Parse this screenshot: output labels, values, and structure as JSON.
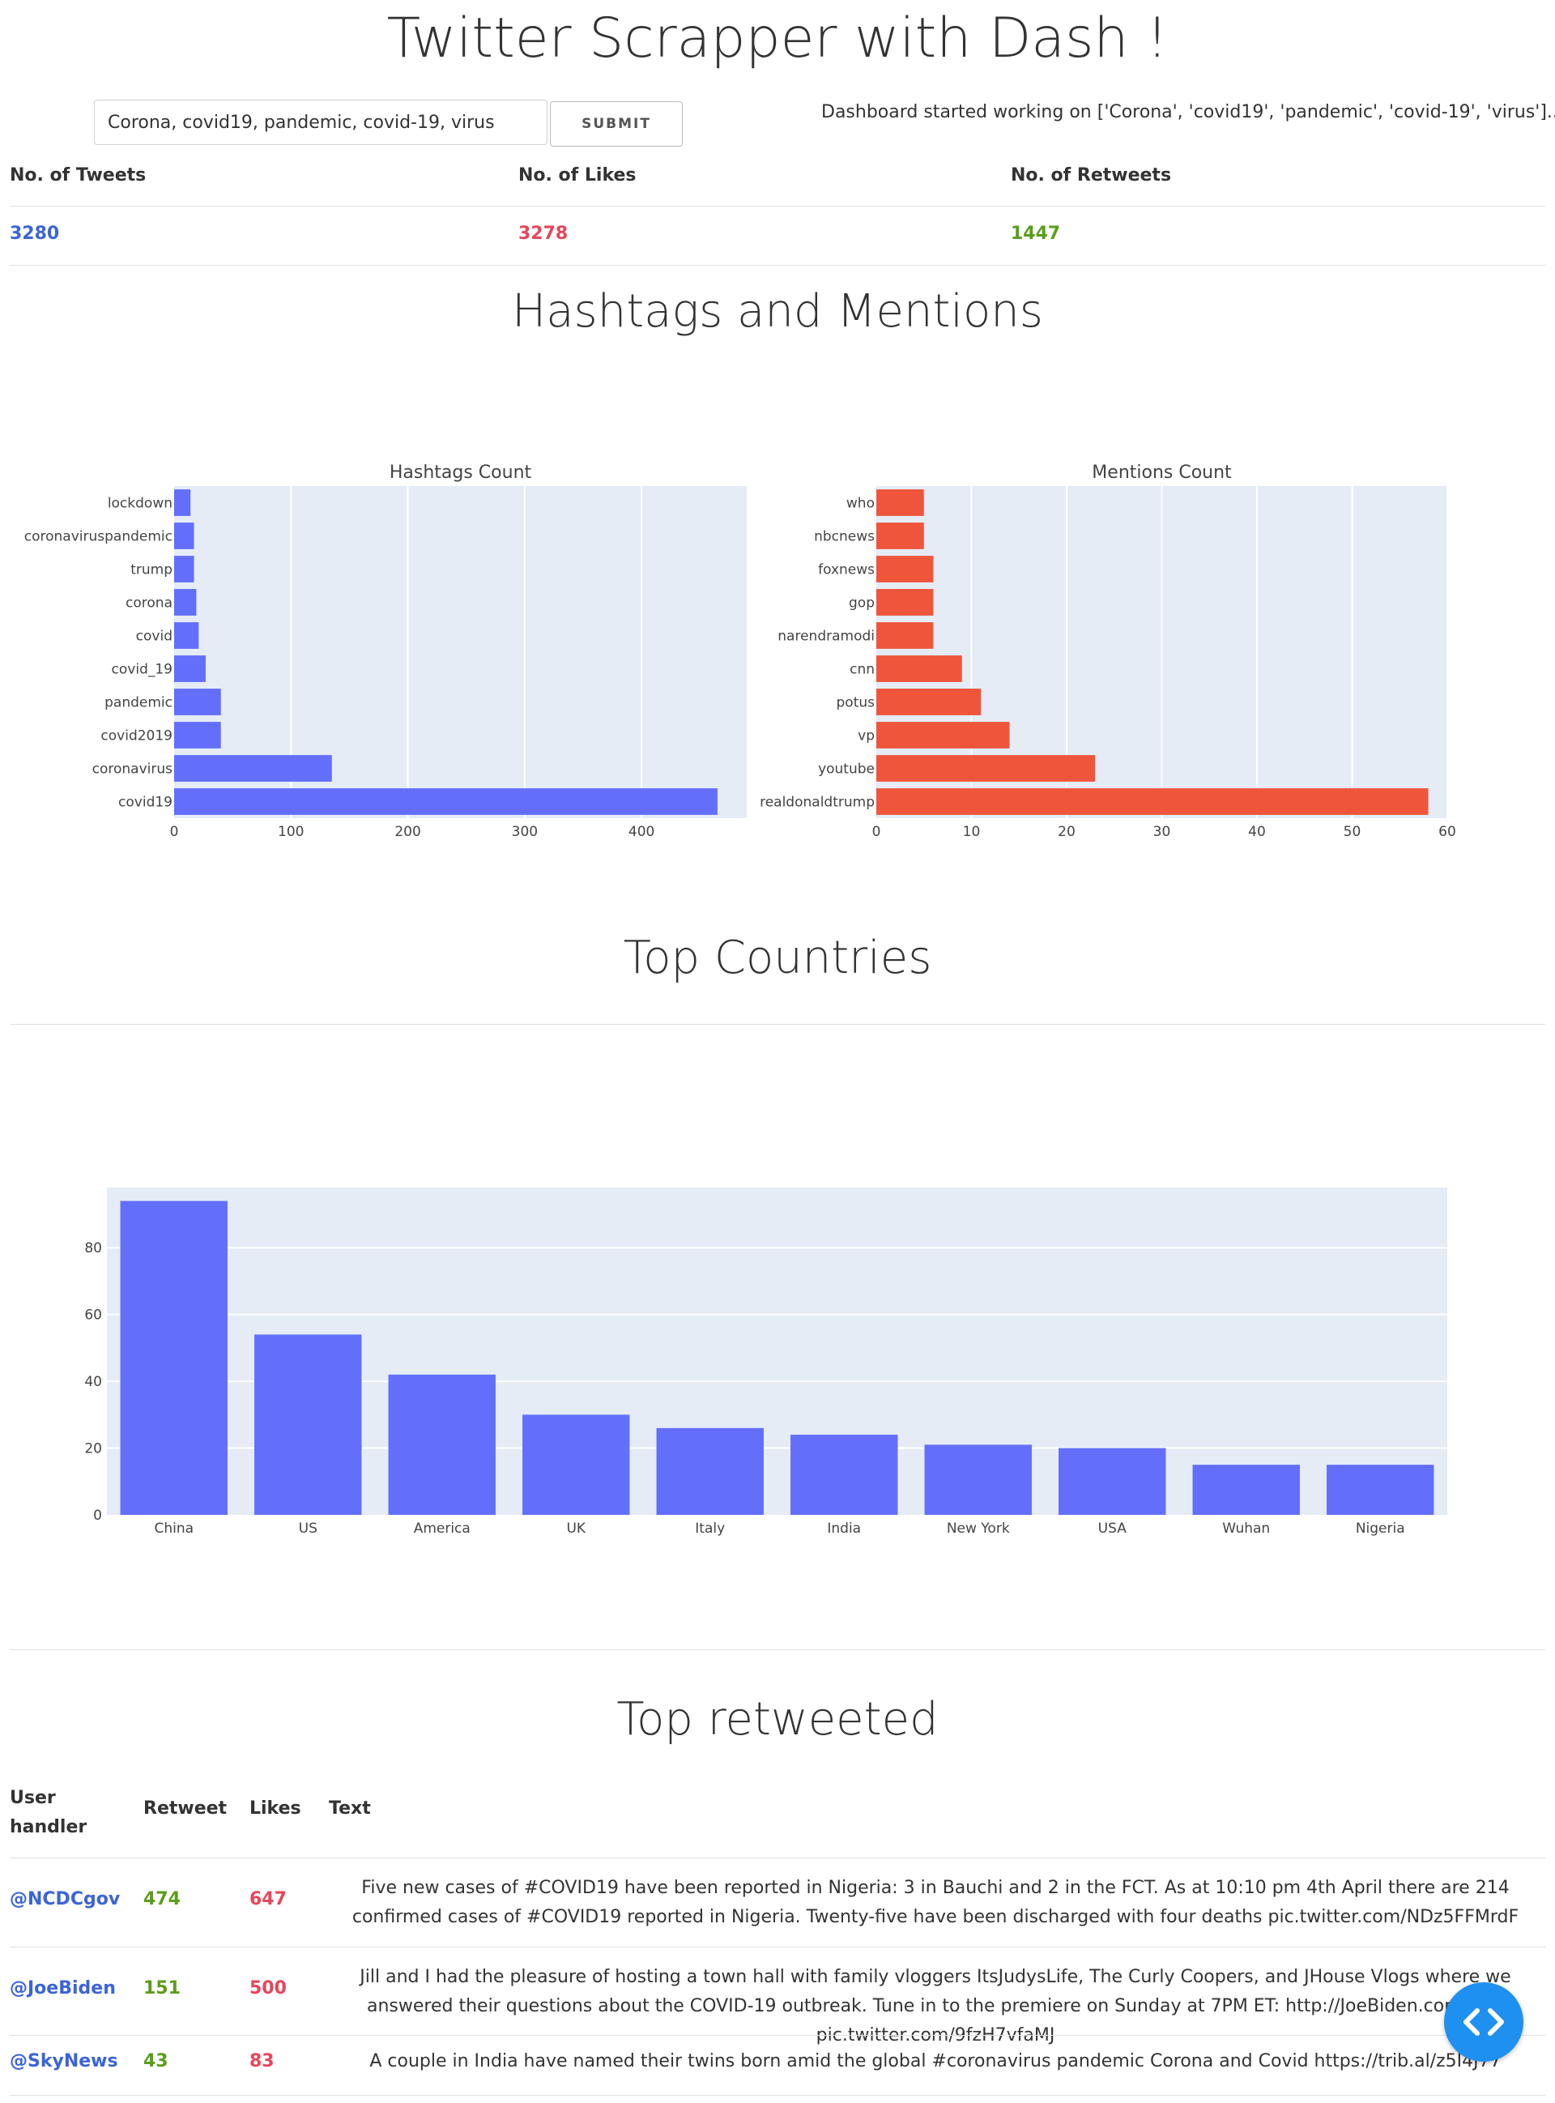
{
  "header": {
    "title": "Twitter Scrapper with Dash !",
    "search_value": "Corona, covid19, pandemic, covid-19, virus",
    "submit_label": "SUBMIT",
    "status": "Dashboard started working on ['Corona', 'covid19', 'pandemic', 'covid-19', 'virus']..."
  },
  "stats": {
    "tweets_label": "No. of Tweets",
    "likes_label": "No. of Likes",
    "retweets_label": "No. of Retweets",
    "tweets": "3280",
    "likes": "3278",
    "retweets": "1447"
  },
  "colors": {
    "blue": "#636efa",
    "red": "#ef553b",
    "plot_bg": "#e5ecf6",
    "tweets": "#3b64d8",
    "likes": "#e8455a",
    "retweets": "#5a9e1a",
    "fab": "#1e90f0"
  },
  "sections": {
    "hashtags_title": "Hashtags and Mentions",
    "countries_title": "Top Countries",
    "retweeted_title": "Top retweeted"
  },
  "chart_data": [
    {
      "type": "bar",
      "orientation": "horizontal",
      "title": "Hashtags Count",
      "categories": [
        "lockdown",
        "coronaviruspandemic",
        "trump",
        "corona",
        "covid",
        "covid_19",
        "pandemic",
        "covid2019",
        "coronavirus",
        "covid19"
      ],
      "values": [
        14,
        17,
        17,
        19,
        21,
        27,
        40,
        40,
        135,
        465
      ],
      "xlim": [
        0,
        490
      ],
      "xticks": [
        0,
        100,
        200,
        300,
        400
      ],
      "grid": true
    },
    {
      "type": "bar",
      "orientation": "horizontal",
      "title": "Mentions Count",
      "categories": [
        "who",
        "nbcnews",
        "foxnews",
        "gop",
        "narendramodi",
        "cnn",
        "potus",
        "vp",
        "youtube",
        "realdonaldtrump"
      ],
      "values": [
        5,
        5,
        6,
        6,
        6,
        9,
        11,
        14,
        23,
        58
      ],
      "xlim": [
        0,
        60
      ],
      "xticks": [
        0,
        10,
        20,
        30,
        40,
        50,
        60
      ],
      "grid": true
    },
    {
      "type": "bar",
      "orientation": "vertical",
      "title": "",
      "categories": [
        "China",
        "US",
        "America",
        "UK",
        "Italy",
        "India",
        "New York",
        "USA",
        "Wuhan",
        "Nigeria"
      ],
      "values": [
        94,
        54,
        42,
        30,
        26,
        24,
        21,
        20,
        15,
        15
      ],
      "ylim": [
        0,
        98
      ],
      "yticks": [
        0,
        20,
        40,
        60,
        80
      ],
      "grid": true
    }
  ],
  "table": {
    "headers": {
      "user": "User handler",
      "retweet": "Retweet",
      "likes": "Likes",
      "text": "Text"
    },
    "rows": [
      {
        "user": "@NCDCgov",
        "retweet": "474",
        "likes": "647",
        "text": "Five new cases of #COVID19 have been reported in Nigeria: 3 in Bauchi and 2 in the FCT. As at 10:10 pm 4th April there are 214 confirmed cases of #COVID19 reported in Nigeria. Twenty-five have been discharged with four deaths pic.twitter.com/NDz5FFMrdF"
      },
      {
        "user": "@JoeBiden",
        "retweet": "151",
        "likes": "500",
        "text": "Jill and I had the pleasure of hosting a town hall with family vloggers ItsJudysLife, The Curly Coopers, and JHouse Vlogs where we answered their questions about the COVID-19 outbreak. Tune in to the premiere on Sunday at 7PM ET: http://JoeBiden.com/Live pic.twitter.com/9fzH7vfaMJ"
      },
      {
        "user": "@SkyNews",
        "retweet": "43",
        "likes": "83",
        "text": "A couple in India have named their twins born amid the global #coronavirus pandemic Corona and Covid https://trib.al/z5I4J77"
      }
    ]
  }
}
